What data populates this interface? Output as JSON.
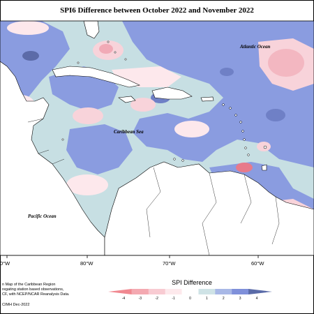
{
  "title": "SPI6 Difference between October 2022 and November 2022",
  "map": {
    "ocean_labels": [
      {
        "text": "Atlantic Ocean"
      },
      {
        "text": "Caribbean Sea"
      },
      {
        "text": "Pacific Ocean"
      }
    ],
    "longitude_ticks": [
      "0°W",
      "80°W",
      "70°W",
      "60°W"
    ]
  },
  "credit": {
    "lines": [
      "n Map of the Caribbean Region",
      "regating station based observations,",
      "CF, with NCEP/NCAR Reanalysis Data."
    ],
    "footer": "CIMH Dec-2022"
  },
  "legend": {
    "title": "SPI Difference",
    "ticks": [
      "-4",
      "-3",
      "-2",
      "-1",
      "0",
      "1",
      "2",
      "3",
      "4"
    ],
    "colors": [
      "#f08890",
      "#f4a9b1",
      "#f8cbd2",
      "#fde9ec",
      "#ffffff",
      "#cfe3e6",
      "#a8b8e6",
      "#7f90da",
      "#5a6ba8"
    ]
  }
}
